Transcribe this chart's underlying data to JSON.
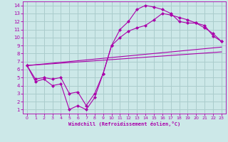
{
  "xlabel": "Windchill (Refroidissement éolien,°C)",
  "background_color": "#cce8e8",
  "grid_color": "#aacccc",
  "line_color": "#aa00aa",
  "xlim": [
    -0.5,
    23.5
  ],
  "ylim": [
    0.5,
    14.5
  ],
  "xticks": [
    0,
    1,
    2,
    3,
    4,
    5,
    6,
    7,
    8,
    9,
    10,
    11,
    12,
    13,
    14,
    15,
    16,
    17,
    18,
    19,
    20,
    21,
    22,
    23
  ],
  "yticks": [
    1,
    2,
    3,
    4,
    5,
    6,
    7,
    8,
    9,
    10,
    11,
    12,
    13,
    14
  ],
  "curve1_x": [
    0,
    1,
    2,
    3,
    4,
    5,
    6,
    7,
    8,
    9,
    10,
    11,
    12,
    13,
    14,
    15,
    16,
    17,
    18,
    19,
    20,
    21,
    22,
    23
  ],
  "curve1_y": [
    6.5,
    4.5,
    4.8,
    4.0,
    4.2,
    1.0,
    1.5,
    1.0,
    2.5,
    5.5,
    9.0,
    11.0,
    12.0,
    13.5,
    14.0,
    13.8,
    13.5,
    13.0,
    12.0,
    11.8,
    11.8,
    11.5,
    10.2,
    9.5
  ],
  "curve2_x": [
    0,
    1,
    2,
    3,
    4,
    5,
    6,
    7,
    8,
    9,
    10,
    11,
    12,
    13,
    14,
    15,
    16,
    17,
    18,
    19,
    20,
    21,
    22,
    23
  ],
  "curve2_y": [
    6.5,
    4.8,
    5.0,
    4.8,
    5.0,
    3.0,
    3.2,
    1.5,
    3.0,
    5.5,
    9.0,
    10.0,
    10.8,
    11.2,
    11.5,
    12.2,
    13.0,
    12.8,
    12.5,
    12.2,
    11.8,
    11.2,
    10.5,
    9.5
  ],
  "line1_x": [
    0,
    23
  ],
  "line1_y": [
    6.5,
    8.8
  ],
  "line2_x": [
    0,
    23
  ],
  "line2_y": [
    6.5,
    8.2
  ]
}
